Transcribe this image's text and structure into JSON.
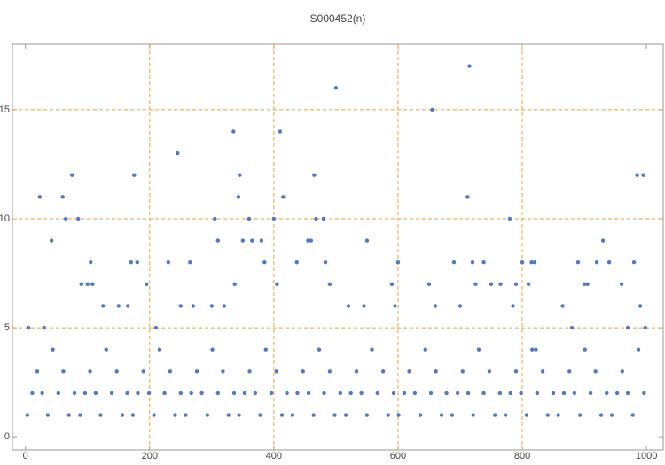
{
  "chart_data": {
    "type": "scatter",
    "title": "S000452(n)",
    "x": [
      5,
      23,
      30,
      42,
      60,
      65,
      75,
      85,
      90,
      100,
      105,
      108,
      125,
      150,
      165,
      170,
      175,
      180,
      195,
      210,
      230,
      245,
      250,
      265,
      270,
      300,
      305,
      310,
      320,
      335,
      337,
      343,
      345,
      350,
      360,
      365,
      380,
      385,
      400,
      405,
      410,
      415,
      437,
      455,
      460,
      465,
      468,
      480,
      483,
      490,
      500,
      520,
      545,
      550,
      590,
      595,
      600,
      650,
      655,
      660,
      690,
      700,
      712,
      715,
      720,
      725,
      738,
      750,
      765,
      780,
      785,
      790,
      800,
      810,
      815,
      820,
      822,
      865,
      880,
      890,
      900,
      905,
      920,
      930,
      940,
      960,
      970,
      980,
      985,
      990,
      995,
      998,
      3,
      11,
      19,
      27,
      36,
      44,
      53,
      61,
      70,
      79,
      88,
      96,
      104,
      113,
      121,
      130,
      139,
      147,
      156,
      164,
      173,
      181,
      190,
      199,
      207,
      216,
      224,
      233,
      241,
      250,
      258,
      267,
      276,
      284,
      293,
      301,
      310,
      318,
      327,
      336,
      344,
      353,
      361,
      370,
      378,
      387,
      396,
      404,
      413,
      421,
      430,
      438,
      447,
      456,
      464,
      473,
      481,
      490,
      498,
      507,
      516,
      524,
      533,
      541,
      550,
      558,
      567,
      576,
      584,
      593,
      601,
      610,
      618,
      627,
      636,
      644,
      653,
      661,
      670,
      678,
      687,
      696,
      704,
      713,
      721,
      730,
      738,
      747,
      756,
      764,
      773,
      781,
      790,
      798,
      807,
      816,
      824,
      833,
      841,
      850,
      858,
      867,
      876,
      884,
      893,
      901,
      910,
      918,
      927,
      936,
      944,
      953,
      961,
      970,
      978,
      987,
      996
    ],
    "values": [
      5,
      11,
      5,
      9,
      11,
      10,
      12,
      10,
      7,
      7,
      8,
      7,
      6,
      6,
      6,
      8,
      12,
      8,
      7,
      5,
      8,
      13,
      6,
      8,
      6,
      6,
      10,
      9,
      6,
      14,
      7,
      11,
      12,
      9,
      10,
      9,
      9,
      8,
      10,
      7,
      14,
      11,
      8,
      9,
      9,
      12,
      10,
      10,
      8,
      7,
      16,
      6,
      6,
      9,
      7,
      6,
      8,
      7,
      15,
      6,
      8,
      6,
      11,
      17,
      8,
      7,
      8,
      7,
      7,
      10,
      6,
      7,
      8,
      7,
      8,
      8,
      4,
      6,
      5,
      8,
      7,
      7,
      8,
      9,
      8,
      7,
      5,
      8,
      12,
      6,
      12,
      5,
      1,
      2,
      3,
      2,
      1,
      4,
      2,
      3,
      1,
      2,
      1,
      2,
      3,
      2,
      1,
      4,
      2,
      3,
      1,
      2,
      1,
      2,
      3,
      2,
      1,
      4,
      2,
      3,
      1,
      2,
      1,
      2,
      3,
      2,
      1,
      4,
      2,
      3,
      1,
      2,
      1,
      2,
      3,
      2,
      1,
      4,
      2,
      3,
      1,
      2,
      1,
      2,
      3,
      2,
      1,
      4,
      2,
      3,
      1,
      2,
      1,
      2,
      3,
      2,
      1,
      4,
      2,
      3,
      1,
      2,
      1,
      2,
      3,
      2,
      1,
      4,
      2,
      3,
      1,
      2,
      1,
      2,
      3,
      2,
      1,
      4,
      2,
      3,
      1,
      2,
      1,
      2,
      3,
      2,
      1,
      4,
      2,
      3,
      1,
      2,
      1,
      2,
      3,
      2,
      1,
      4,
      2,
      3,
      1,
      2,
      1,
      2,
      3,
      2,
      1,
      4,
      2
    ],
    "color": "#5079bf",
    "xlim": [
      -21,
      1027
    ],
    "ylim": [
      -0.6,
      18
    ],
    "xticks": [
      0,
      200,
      400,
      600,
      800,
      1000
    ],
    "yticks": [
      0,
      5,
      10,
      15
    ],
    "grid": true,
    "grid_color": "#e8a33a"
  }
}
